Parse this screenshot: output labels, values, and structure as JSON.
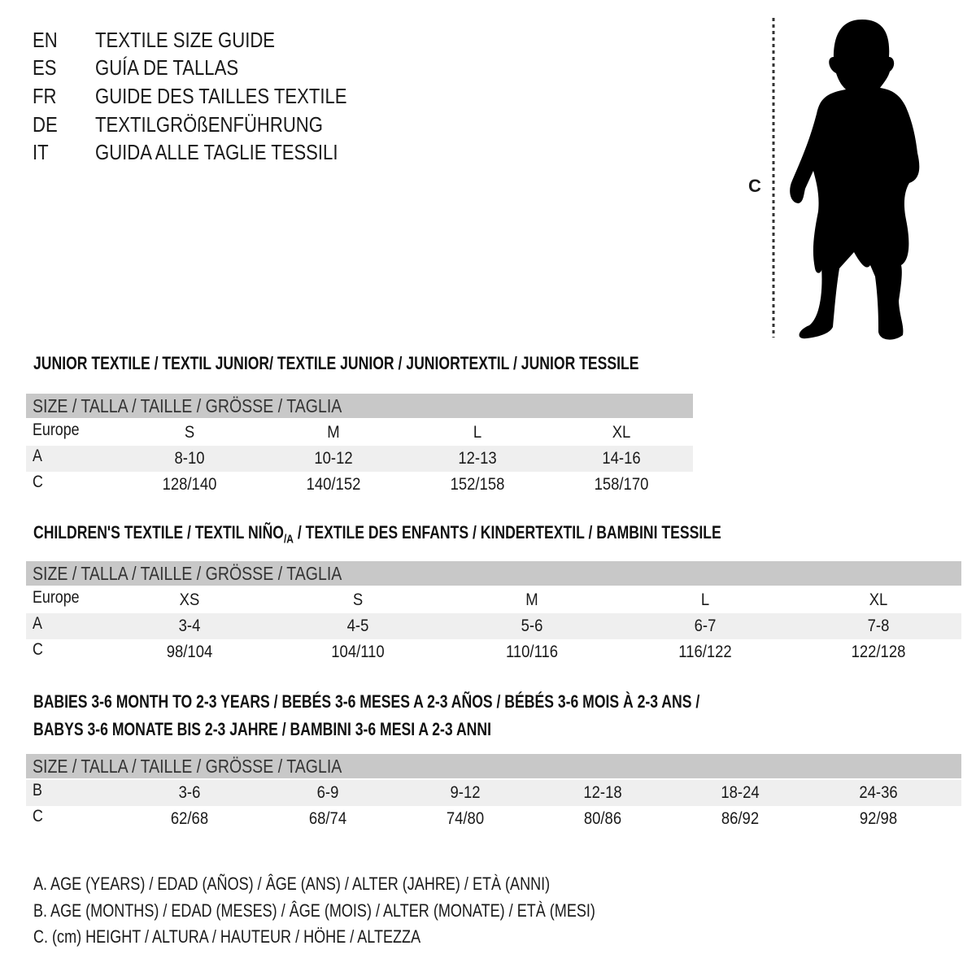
{
  "titles": [
    {
      "code": "EN",
      "text": "TEXTILE SIZE GUIDE"
    },
    {
      "code": "ES",
      "text": "GUÍA DE TALLAS"
    },
    {
      "code": "FR",
      "text": "GUIDE DES TAILLES TEXTILE"
    },
    {
      "code": "DE",
      "text": "TEXTILGRÖßENFÜHRUNG"
    },
    {
      "code": "IT",
      "text": "GUIDA ALLE TAGLIE TESSILI"
    }
  ],
  "figure": {
    "measure_label": "C",
    "icon": "child-silhouette-icon"
  },
  "colors": {
    "header_bg": "#c8c8c8",
    "shaded_row": "#efefef"
  },
  "junior": {
    "title": "JUNIOR TEXTILE / TEXTIL JUNIOR/ TEXTILE JUNIOR / JUNIORTEXTIL / JUNIOR TESSILE",
    "header": "SIZE / TALLA / TAILLE / GRÖSSE / TAGLIA",
    "rows": [
      {
        "label": "Europe",
        "cells": [
          "S",
          "M",
          "L",
          "XL"
        ]
      },
      {
        "label": "A",
        "cells": [
          "8-10",
          "10-12",
          "12-13",
          "14-16"
        ]
      },
      {
        "label": "C",
        "cells": [
          "128/140",
          "140/152",
          "152/158",
          "158/170"
        ]
      }
    ]
  },
  "children": {
    "title_a": "CHILDREN'S TEXTILE / TEXTIL NIÑO",
    "title_sub": "/A",
    "title_b": " / TEXTILE DES ENFANTS / KINDERTEXTIL / BAMBINI TESSILE",
    "header": "SIZE / TALLA / TAILLE / GRÖSSE / TAGLIA",
    "rows": [
      {
        "label": "Europe",
        "cells": [
          "XS",
          "S",
          "M",
          "L",
          "XL"
        ]
      },
      {
        "label": "A",
        "cells": [
          "3-4",
          "4-5",
          "5-6",
          "6-7",
          "7-8"
        ]
      },
      {
        "label": "C",
        "cells": [
          "98/104",
          "104/110",
          "110/116",
          "116/122",
          "122/128"
        ]
      }
    ]
  },
  "babies": {
    "title_line1": "BABIES 3-6 MONTH TO 2-3 YEARS / BEBÉS 3-6 MESES A 2-3 AÑOS / BÉBÉS 3-6 MOIS À 2-3 ANS /",
    "title_line2": "BABYS 3-6 MONATE BIS 2-3 JAHRE / BAMBINI 3-6 MESI A 2-3 ANNI",
    "header": "SIZE / TALLA / TAILLE / GRÖSSE / TAGLIA",
    "rows": [
      {
        "label": "B",
        "cells": [
          "3-6",
          "6-9",
          "9-12",
          "12-18",
          "18-24",
          "24-36"
        ]
      },
      {
        "label": "C",
        "cells": [
          "62/68",
          "68/74",
          "74/80",
          "80/86",
          "86/92",
          "92/98"
        ]
      }
    ]
  },
  "legend": [
    "A. AGE (YEARS) / EDAD (AÑOS) / ÂGE (ANS) / ALTER (JAHRE) / ETÀ (ANNI)",
    "B. AGE (MONTHS) / EDAD (MESES) / ÂGE (MOIS) / ALTER (MONATE) / ETÀ (MESI)",
    "C. (cm) HEIGHT / ALTURA / HAUTEUR / HÖHE / ALTEZZA"
  ]
}
